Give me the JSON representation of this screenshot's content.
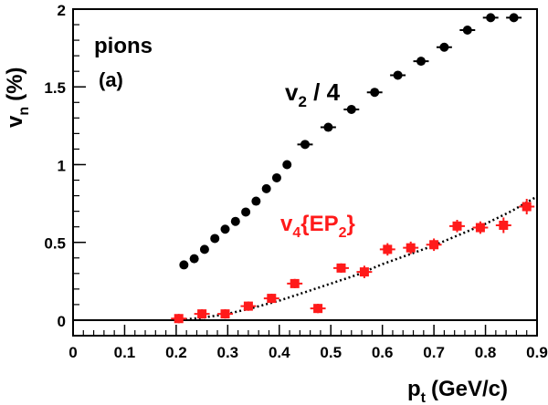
{
  "chart_data": {
    "type": "scatter",
    "xlabel": "p",
    "xlabel_sub": "t",
    "xlabel_unit": "(GeV/c)",
    "ylabel": "v",
    "ylabel_sub": "n",
    "ylabel_unit": "(%)",
    "xlim": [
      0,
      0.9
    ],
    "ylim": [
      -0.1,
      2.0
    ],
    "x_ticks": [
      "0",
      "0.1",
      "0.2",
      "0.3",
      "0.4",
      "0.5",
      "0.6",
      "0.7",
      "0.8",
      "0.9"
    ],
    "y_ticks": [
      "0",
      "0.5",
      "1",
      "1.5",
      "2"
    ],
    "annotations": {
      "species": "pions",
      "panel": "(a)"
    },
    "series": [
      {
        "name": "v2 / 4",
        "label_main": "v",
        "label_sub": "2",
        "label_rest": " / 4",
        "color": "#000000",
        "marker": "circle",
        "x": [
          0.215,
          0.235,
          0.255,
          0.275,
          0.295,
          0.315,
          0.335,
          0.355,
          0.375,
          0.395,
          0.415,
          0.45,
          0.495,
          0.54,
          0.585,
          0.63,
          0.675,
          0.72,
          0.765,
          0.81,
          0.855
        ],
        "y": [
          0.355,
          0.395,
          0.455,
          0.525,
          0.585,
          0.635,
          0.695,
          0.765,
          0.845,
          0.915,
          1.0,
          1.13,
          1.24,
          1.355,
          1.465,
          1.575,
          1.665,
          1.755,
          1.865,
          1.945,
          1.945
        ],
        "xerr": [
          0.008,
          0.008,
          0.008,
          0.008,
          0.008,
          0.008,
          0.008,
          0.008,
          0.008,
          0.008,
          0.008,
          0.015,
          0.015,
          0.015,
          0.015,
          0.015,
          0.015,
          0.015,
          0.015,
          0.015,
          0.015
        ]
      },
      {
        "name": "v4{EP2}",
        "label_main": "v",
        "label_sub": "4",
        "label_rest": "{EP",
        "label_sub2": "2",
        "label_end": "}",
        "color": "#ff1a1a",
        "marker": "square",
        "x": [
          0.205,
          0.25,
          0.295,
          0.34,
          0.385,
          0.43,
          0.475,
          0.52,
          0.565,
          0.61,
          0.655,
          0.7,
          0.745,
          0.79,
          0.835,
          0.88
        ],
        "y": [
          0.01,
          0.04,
          0.04,
          0.09,
          0.14,
          0.235,
          0.075,
          0.335,
          0.31,
          0.455,
          0.465,
          0.485,
          0.605,
          0.595,
          0.61,
          0.73
        ],
        "xerr": [
          0.015,
          0.015,
          0.015,
          0.015,
          0.015,
          0.015,
          0.015,
          0.015,
          0.015,
          0.015,
          0.015,
          0.015,
          0.015,
          0.015,
          0.015,
          0.015
        ],
        "yerr": [
          0.03,
          0.03,
          0.03,
          0.03,
          0.03,
          0.03,
          0.03,
          0.03,
          0.04,
          0.04,
          0.04,
          0.04,
          0.04,
          0.04,
          0.05,
          0.05
        ]
      }
    ],
    "fit_curve": {
      "style": "dotted",
      "color": "#000000",
      "x": [
        0.2,
        0.25,
        0.3,
        0.35,
        0.4,
        0.45,
        0.5,
        0.55,
        0.6,
        0.65,
        0.7,
        0.75,
        0.8,
        0.85,
        0.9
      ],
      "y": [
        0.0,
        0.015,
        0.04,
        0.08,
        0.125,
        0.18,
        0.235,
        0.29,
        0.36,
        0.42,
        0.48,
        0.55,
        0.62,
        0.7,
        0.795
      ]
    },
    "reference_line": {
      "y": 0,
      "color": "#000000"
    },
    "grid": false,
    "legend": "none"
  }
}
